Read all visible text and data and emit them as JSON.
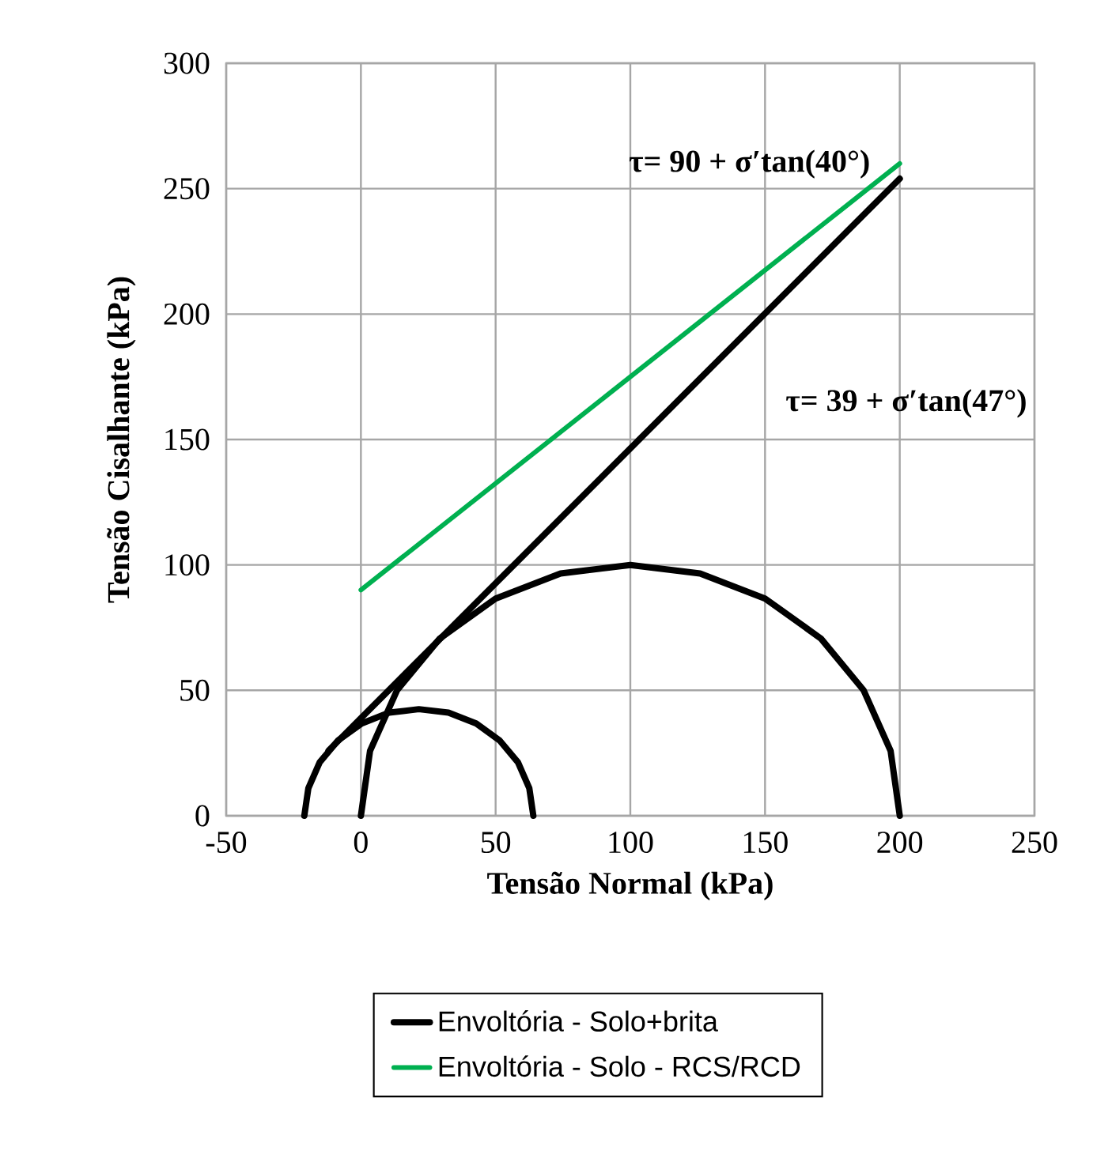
{
  "chart_data": {
    "type": "line",
    "xlabel": "Tensão Normal (kPa)",
    "ylabel": "Tensão Cisalhante (kPa)",
    "xlim": [
      -50,
      250
    ],
    "xticks": [
      -50,
      0,
      50,
      100,
      150,
      200,
      250
    ],
    "ylim": [
      0,
      300
    ],
    "yticks": [
      0,
      50,
      100,
      150,
      200,
      250,
      300
    ],
    "grid": true,
    "legend": "bottom",
    "annotations": [
      "**τ= 90 + σ′tan(40°)**",
      "**τ= 39 + σ′tan(47°)**"
    ],
    "series": [
      {
        "name": "Envoltória - Solo+brita",
        "color": "#000000",
        "x": [
          -12,
          200
        ],
        "values": [
          26,
          254
        ]
      },
      {
        "name": "Envoltória - Solo - RCS/RCD",
        "color": "#00b050",
        "x": [
          0,
          200
        ],
        "values": [
          90,
          260
        ]
      },
      {
        "color": "#000000",
        "x": [
          -21,
          -19.5,
          -15.3,
          -8.5,
          0.3,
          10.5,
          21.5,
          32.5,
          42.8,
          51.5,
          58.3,
          62.5,
          64
        ],
        "values": [
          0,
          11,
          21.3,
          30,
          36.8,
          41.1,
          42.5,
          41.1,
          36.8,
          30,
          21.3,
          11,
          0
        ]
      },
      {
        "color": "#000000",
        "x": [
          0,
          3.4,
          13.4,
          29.3,
          50,
          74.1,
          100,
          125.9,
          150,
          170.7,
          186.6,
          196.6,
          200
        ],
        "values": [
          0,
          25.9,
          50,
          70.7,
          86.6,
          96.6,
          100,
          96.6,
          86.6,
          70.7,
          50,
          25.9,
          0
        ]
      }
    ]
  }
}
